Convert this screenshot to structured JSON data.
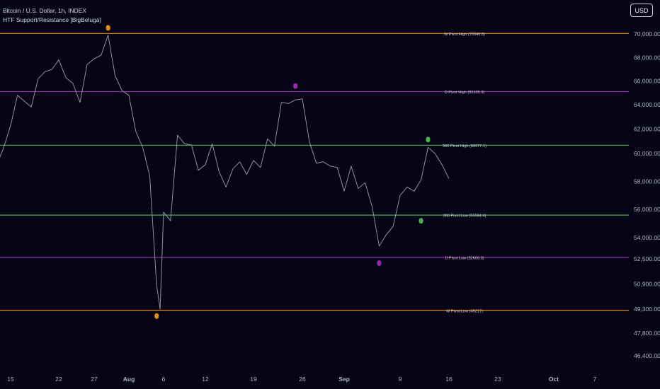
{
  "header": {
    "title": "Bitcoin / U.S. Dollar, 1h, INDEX",
    "indicator": "HTF Support/Resistance [BigBeluga]"
  },
  "currency_button": "USD",
  "colors": {
    "background": "#050517",
    "price_line": "#8f9199",
    "weekly": "#e38b17",
    "daily": "#9b27b0",
    "h360": "#4caf50",
    "label_text": "#d1d4dc"
  },
  "chart_data": {
    "type": "line",
    "title": "Bitcoin / U.S. Dollar, 1h, INDEX",
    "xlabel": "",
    "ylabel": "",
    "x_range": [
      "2024-07-11",
      "2024-10-10"
    ],
    "ylim": [
      45500,
      71300
    ],
    "y_ticks": [
      "70,000.00",
      "68,000.00",
      "66,000.00",
      "64,000.00",
      "62,000.00",
      "60,000.00",
      "58,000.00",
      "56,000.00",
      "54,000.00",
      "52,500.00",
      "50,900.00",
      "49,300.00",
      "47,800.00",
      "46,400.00"
    ],
    "x_ticks": [
      {
        "label": "15",
        "date": "2024-07-15",
        "bold": false
      },
      {
        "label": "22",
        "date": "2024-07-22",
        "bold": false
      },
      {
        "label": "27",
        "date": "2024-07-27",
        "bold": false
      },
      {
        "label": "Aug",
        "date": "2024-08-01",
        "bold": true
      },
      {
        "label": "6",
        "date": "2024-08-06",
        "bold": false
      },
      {
        "label": "12",
        "date": "2024-08-12",
        "bold": false
      },
      {
        "label": "19",
        "date": "2024-08-19",
        "bold": false
      },
      {
        "label": "26",
        "date": "2024-08-26",
        "bold": false
      },
      {
        "label": "Sep",
        "date": "2024-09-01",
        "bold": true
      },
      {
        "label": "9",
        "date": "2024-09-09",
        "bold": false
      },
      {
        "label": "16",
        "date": "2024-09-16",
        "bold": false
      },
      {
        "label": "23",
        "date": "2024-09-23",
        "bold": false
      },
      {
        "label": "Oct",
        "date": "2024-10-01",
        "bold": true
      },
      {
        "label": "7",
        "date": "2024-10-07",
        "bold": false
      }
    ],
    "series": [
      {
        "points": [
          [
            "2024-07-11",
            58600
          ],
          [
            "2024-07-12",
            57900
          ],
          [
            "2024-07-13",
            59200
          ],
          [
            "2024-07-14",
            60500
          ],
          [
            "2024-07-15",
            62300
          ],
          [
            "2024-07-16",
            64800
          ],
          [
            "2024-07-17",
            64300
          ],
          [
            "2024-07-18",
            63800
          ],
          [
            "2024-07-19",
            66200
          ],
          [
            "2024-07-20",
            66800
          ],
          [
            "2024-07-21",
            67000
          ],
          [
            "2024-07-22",
            67800
          ],
          [
            "2024-07-23",
            66300
          ],
          [
            "2024-07-24",
            65800
          ],
          [
            "2024-07-25",
            64200
          ],
          [
            "2024-07-26",
            67400
          ],
          [
            "2024-07-27",
            67900
          ],
          [
            "2024-07-28",
            68200
          ],
          [
            "2024-07-29",
            69900
          ],
          [
            "2024-07-30",
            66500
          ],
          [
            "2024-07-31",
            65200
          ],
          [
            "2024-08-01",
            64800
          ],
          [
            "2024-08-02",
            61800
          ],
          [
            "2024-08-03",
            60500
          ],
          [
            "2024-08-04",
            58400
          ],
          [
            "2024-08-05",
            50800
          ],
          [
            "2024-08-05T12",
            49300
          ],
          [
            "2024-08-06",
            55800
          ],
          [
            "2024-08-07",
            55200
          ],
          [
            "2024-08-08",
            61500
          ],
          [
            "2024-08-09",
            60800
          ],
          [
            "2024-08-10",
            60700
          ],
          [
            "2024-08-11",
            58800
          ],
          [
            "2024-08-12",
            59200
          ],
          [
            "2024-08-13",
            60800
          ],
          [
            "2024-08-14",
            58700
          ],
          [
            "2024-08-15",
            57600
          ],
          [
            "2024-08-16",
            58900
          ],
          [
            "2024-08-17",
            59400
          ],
          [
            "2024-08-18",
            58500
          ],
          [
            "2024-08-19",
            59500
          ],
          [
            "2024-08-20",
            59000
          ],
          [
            "2024-08-21",
            61200
          ],
          [
            "2024-08-22",
            60600
          ],
          [
            "2024-08-23",
            64200
          ],
          [
            "2024-08-24",
            64100
          ],
          [
            "2024-08-25",
            64400
          ],
          [
            "2024-08-26",
            64500
          ],
          [
            "2024-08-27",
            61000
          ],
          [
            "2024-08-28",
            59300
          ],
          [
            "2024-08-29",
            59400
          ],
          [
            "2024-08-30",
            59100
          ],
          [
            "2024-08-31",
            59000
          ],
          [
            "2024-09-01",
            57300
          ],
          [
            "2024-09-02",
            59100
          ],
          [
            "2024-09-03",
            57500
          ],
          [
            "2024-09-04",
            57900
          ],
          [
            "2024-09-05",
            56200
          ],
          [
            "2024-09-06",
            53400
          ],
          [
            "2024-09-07",
            54200
          ],
          [
            "2024-09-08",
            54800
          ],
          [
            "2024-09-09",
            57000
          ],
          [
            "2024-09-10",
            57600
          ],
          [
            "2024-09-11",
            57300
          ],
          [
            "2024-09-12",
            58100
          ],
          [
            "2024-09-13",
            60500
          ],
          [
            "2024-09-14",
            60000
          ],
          [
            "2024-09-15",
            59200
          ],
          [
            "2024-09-16",
            58200
          ]
        ]
      }
    ],
    "levels": [
      {
        "label": "W Pivot High (70040.8)",
        "value": 70040.8,
        "group": "weekly",
        "pivot_date": "2024-07-29"
      },
      {
        "label": "D Pivot High (65105.9)",
        "value": 65105.9,
        "group": "daily",
        "pivot_date": "2024-08-25"
      },
      {
        "label": "360 Pivot High (60677.1)",
        "value": 60677.1,
        "group": "h360",
        "pivot_date": "2024-09-13"
      },
      {
        "label": "360 Pivot Low (55594.4)",
        "value": 55594.4,
        "group": "h360",
        "pivot_date": "2024-09-12"
      },
      {
        "label": "D Pivot Low (52600.3)",
        "value": 52600.3,
        "group": "daily",
        "pivot_date": "2024-09-06"
      },
      {
        "label": "W Pivot Low (49217)",
        "value": 49217,
        "group": "weekly",
        "pivot_date": "2024-08-05"
      }
    ]
  }
}
